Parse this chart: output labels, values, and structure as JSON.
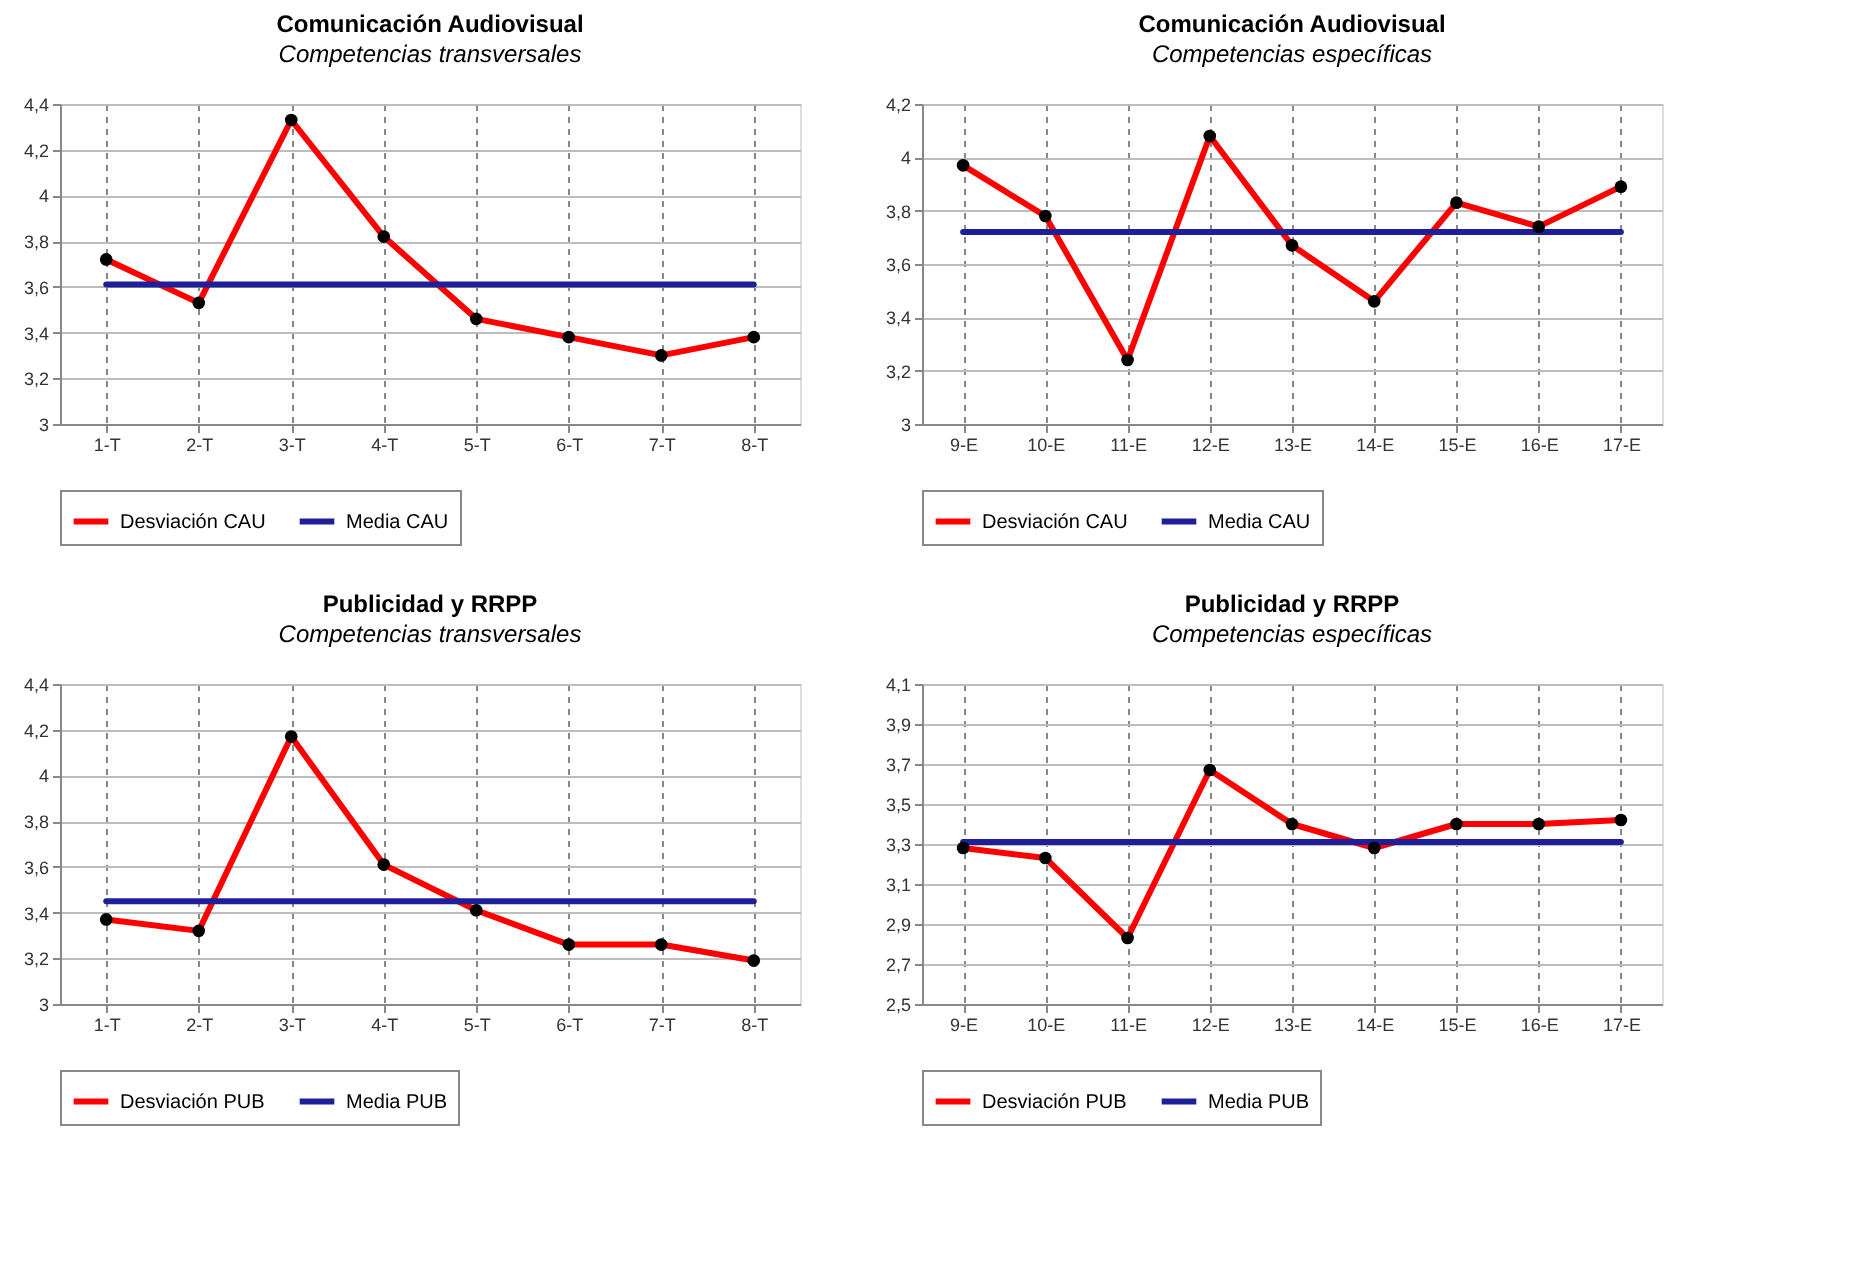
{
  "chart_data": [
    {
      "type": "line",
      "title": "Comunicación Audiovisual",
      "subtitle": "Competencias transversales",
      "categories": [
        "1-T",
        "2-T",
        "3-T",
        "4-T",
        "5-T",
        "6-T",
        "7-T",
        "8-T"
      ],
      "series": [
        {
          "name": "Desviación CAU",
          "color": "#ff0000",
          "marker": "circle",
          "values": [
            3.72,
            3.53,
            4.33,
            3.82,
            3.46,
            3.38,
            3.3,
            3.38
          ]
        },
        {
          "name": "Media CAU",
          "color": "#1f1f9a",
          "marker": "none",
          "values": [
            3.61,
            3.61,
            3.61,
            3.61,
            3.61,
            3.61,
            3.61,
            3.61
          ]
        }
      ],
      "ylim": [
        3,
        4.4
      ],
      "yticks": [
        3,
        {
          "value": 3.2,
          "label": "3,2"
        },
        {
          "value": 3.4,
          "label": "3,4"
        },
        {
          "value": 3.6,
          "label": "3,6"
        },
        {
          "value": 3.8,
          "label": "3,8"
        },
        4,
        {
          "value": 4.2,
          "label": "4,2"
        },
        {
          "value": 4.4,
          "label": "4,4"
        }
      ],
      "grid": true,
      "legend": "bottom"
    },
    {
      "type": "line",
      "title": "Comunicación Audiovisual",
      "subtitle": "Competencias específicas",
      "categories": [
        "9-E",
        "10-E",
        "11-E",
        "12-E",
        "13-E",
        "14-E",
        "15-E",
        "16-E",
        "17-E"
      ],
      "series": [
        {
          "name": "Desviación CAU",
          "color": "#ff0000",
          "marker": "circle",
          "values": [
            3.97,
            3.78,
            3.24,
            4.08,
            3.67,
            3.46,
            3.83,
            3.74,
            3.89
          ]
        },
        {
          "name": "Media CAU",
          "color": "#1f1f9a",
          "marker": "none",
          "values": [
            3.72,
            3.72,
            3.72,
            3.72,
            3.72,
            3.72,
            3.72,
            3.72,
            3.72
          ]
        }
      ],
      "ylim": [
        3,
        4.2
      ],
      "yticks": [
        3,
        {
          "value": 3.2,
          "label": "3,2"
        },
        {
          "value": 3.4,
          "label": "3,4"
        },
        {
          "value": 3.6,
          "label": "3,6"
        },
        {
          "value": 3.8,
          "label": "3,8"
        },
        4,
        {
          "value": 4.2,
          "label": "4,2"
        }
      ],
      "grid": true,
      "legend": "bottom"
    },
    {
      "type": "line",
      "title": "Publicidad y RRPP",
      "subtitle": "Competencias transversales",
      "categories": [
        "1-T",
        "2-T",
        "3-T",
        "4-T",
        "5-T",
        "6-T",
        "7-T",
        "8-T"
      ],
      "series": [
        {
          "name": "Desviación PUB",
          "color": "#ff0000",
          "marker": "circle",
          "values": [
            3.37,
            3.32,
            4.17,
            3.61,
            3.41,
            3.26,
            3.26,
            3.19
          ]
        },
        {
          "name": "Media PUB",
          "color": "#1f1f9a",
          "marker": "none",
          "values": [
            3.45,
            3.45,
            3.45,
            3.45,
            3.45,
            3.45,
            3.45,
            3.45
          ]
        }
      ],
      "ylim": [
        3,
        4.4
      ],
      "yticks": [
        3,
        {
          "value": 3.2,
          "label": "3,2"
        },
        {
          "value": 3.4,
          "label": "3,4"
        },
        {
          "value": 3.6,
          "label": "3,6"
        },
        {
          "value": 3.8,
          "label": "3,8"
        },
        4,
        {
          "value": 4.2,
          "label": "4,2"
        },
        {
          "value": 4.4,
          "label": "4,4"
        }
      ],
      "grid": true,
      "legend": "bottom"
    },
    {
      "type": "line",
      "title": "Publicidad y RRPP",
      "subtitle": "Competencias específicas",
      "categories": [
        "9-E",
        "10-E",
        "11-E",
        "12-E",
        "13-E",
        "14-E",
        "15-E",
        "16-E",
        "17-E"
      ],
      "series": [
        {
          "name": "Desviación PUB",
          "color": "#ff0000",
          "marker": "circle",
          "values": [
            3.28,
            3.23,
            2.83,
            3.67,
            3.4,
            3.28,
            3.4,
            3.4,
            3.42
          ]
        },
        {
          "name": "Media PUB",
          "color": "#1f1f9a",
          "marker": "none",
          "values": [
            3.31,
            3.31,
            3.31,
            3.31,
            3.31,
            3.31,
            3.31,
            3.31,
            3.31
          ]
        }
      ],
      "ylim": [
        2.5,
        4.1
      ],
      "yticks": [
        {
          "value": 2.5,
          "label": "2,5"
        },
        {
          "value": 2.7,
          "label": "2,7"
        },
        {
          "value": 2.9,
          "label": "2,9"
        },
        {
          "value": 3.1,
          "label": "3,1"
        },
        {
          "value": 3.3,
          "label": "3,3"
        },
        {
          "value": 3.5,
          "label": "3,5"
        },
        {
          "value": 3.7,
          "label": "3,7"
        },
        {
          "value": 3.9,
          "label": "3,9"
        },
        {
          "value": 4.1,
          "label": "4,1"
        }
      ],
      "grid": true,
      "legend": "bottom"
    }
  ]
}
